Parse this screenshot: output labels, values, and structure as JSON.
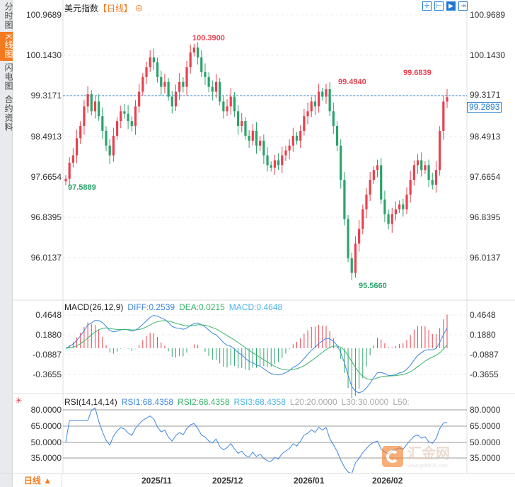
{
  "sidebar": {
    "tabs": [
      {
        "label": "分时图"
      },
      {
        "label": "K线图",
        "active": true
      },
      {
        "label": "闪电图"
      },
      {
        "label": "合约资料"
      }
    ]
  },
  "header": {
    "title": "美元指数",
    "period": "【日线】",
    "crosshair_icon": "plus-circle-icon",
    "tools": [
      "crosshair-icon",
      "range-icon",
      "play-icon",
      "exit-icon"
    ]
  },
  "price_axis": {
    "labels": [
      "100.9689",
      "100.1430",
      "99.3171",
      "98.4913",
      "97.6654",
      "96.8395",
      "96.0137"
    ],
    "range": [
      96.0137,
      100.9689
    ]
  },
  "current_price": "99.2893",
  "reference_line": "99.3171",
  "annotations": {
    "high1": "100.3900",
    "high2": "99.4940",
    "high3": "99.6839",
    "low1": "97.5889",
    "low2": "95.5660"
  },
  "candles_close": [
    97.62,
    97.95,
    98.1,
    98.45,
    98.7,
    99.1,
    99.35,
    99.0,
    99.2,
    98.9,
    98.6,
    98.3,
    98.1,
    98.5,
    98.8,
    99.0,
    98.95,
    98.8,
    98.7,
    99.1,
    99.4,
    99.7,
    99.9,
    100.1,
    100.0,
    99.7,
    99.5,
    99.6,
    99.3,
    99.1,
    99.4,
    99.6,
    99.5,
    99.9,
    100.2,
    100.3,
    100.1,
    99.8,
    99.7,
    99.5,
    99.4,
    99.6,
    99.2,
    99.0,
    99.1,
    99.3,
    99.0,
    98.7,
    98.8,
    98.5,
    98.4,
    98.6,
    98.3,
    98.4,
    98.1,
    97.9,
    97.85,
    98.0,
    97.9,
    98.1,
    98.2,
    98.3,
    98.5,
    98.4,
    98.6,
    98.9,
    99.0,
    99.2,
    99.1,
    99.4,
    99.3,
    99.45,
    99.0,
    98.7,
    98.3,
    97.6,
    96.8,
    96.0,
    95.7,
    96.3,
    96.6,
    97.0,
    97.3,
    97.6,
    97.8,
    97.9,
    97.2,
    96.9,
    96.7,
    96.9,
    97.0,
    97.1,
    97.0,
    97.3,
    97.6,
    97.9,
    98.0,
    97.8,
    97.9,
    97.6,
    97.5,
    97.8,
    98.6,
    99.2,
    99.29
  ],
  "macd": {
    "label": "MACD(26,12,9)",
    "diff": "DIFF:0.2539",
    "dea": "DEA:0.0215",
    "macd": "MACD:0.4648",
    "axis": [
      "0.4648",
      "0.1880",
      "-0.0887",
      "-0.3655"
    ]
  },
  "rsi": {
    "label": "RSI(14,14,14)",
    "rsi1": "RSI1:68.4358",
    "rsi2": "RSI2:68.4358",
    "rsi3": "RSI3:68.4358",
    "l20": "L20:20.0000",
    "l30": "L30:30.0000",
    "l50": "L50:",
    "axis": [
      "80.0000",
      "65.0000",
      "50.0000",
      "35.0000"
    ]
  },
  "dates": [
    "2025/11",
    "2025/12",
    "2026/01",
    "2026/02"
  ],
  "period_button": "日线 ▲",
  "logo": {
    "text": "汇金网",
    "url": "www.gold678.com"
  },
  "colors": {
    "up": "#e8414f",
    "down": "#2aa36b",
    "accent": "#f47a20",
    "line": "#1f7ad1"
  }
}
